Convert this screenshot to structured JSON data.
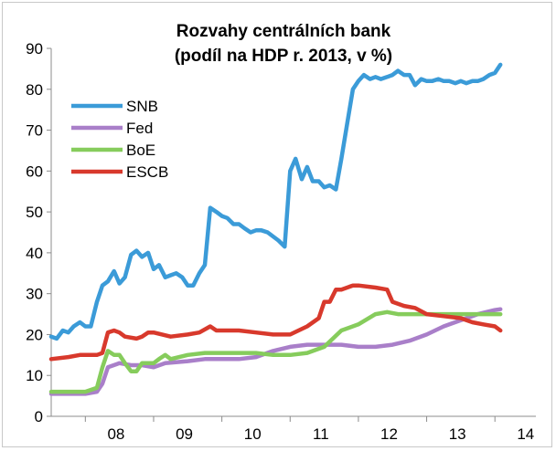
{
  "chart_data": {
    "type": "line",
    "title": "Rozvahy centrálních bank",
    "subtitle": "(podíl na HDP r. 2013, v %)",
    "xlabel": "",
    "ylabel": "",
    "ylim": [
      0,
      90
    ],
    "yticks": [
      0,
      10,
      20,
      30,
      40,
      50,
      60,
      70,
      80,
      90
    ],
    "xlim": [
      2007.5,
      2014.6
    ],
    "xtick_labels": [
      "08",
      "09",
      "10",
      "11",
      "12",
      "13",
      "14"
    ],
    "xtick_positions": [
      2008,
      2009,
      2010,
      2011,
      2012,
      2013,
      2014
    ],
    "grid": false,
    "legend_position": "top-left",
    "series": [
      {
        "name": "SNB",
        "color": "#3b9bd8",
        "points": [
          [
            2007.5,
            19.5
          ],
          [
            2007.58,
            19
          ],
          [
            2007.67,
            21
          ],
          [
            2007.75,
            20.5
          ],
          [
            2007.83,
            22
          ],
          [
            2007.92,
            23
          ],
          [
            2008.0,
            22
          ],
          [
            2008.08,
            22
          ],
          [
            2008.17,
            28
          ],
          [
            2008.25,
            32
          ],
          [
            2008.33,
            33
          ],
          [
            2008.42,
            35.5
          ],
          [
            2008.5,
            32.5
          ],
          [
            2008.58,
            34
          ],
          [
            2008.67,
            39.5
          ],
          [
            2008.75,
            40.5
          ],
          [
            2008.83,
            39
          ],
          [
            2008.92,
            40
          ],
          [
            2009.0,
            36
          ],
          [
            2009.08,
            37
          ],
          [
            2009.17,
            34
          ],
          [
            2009.25,
            34.5
          ],
          [
            2009.33,
            35
          ],
          [
            2009.42,
            34
          ],
          [
            2009.5,
            32
          ],
          [
            2009.58,
            32
          ],
          [
            2009.67,
            35
          ],
          [
            2009.75,
            37
          ],
          [
            2009.83,
            51
          ],
          [
            2009.92,
            50
          ],
          [
            2010.0,
            49
          ],
          [
            2010.08,
            48.5
          ],
          [
            2010.17,
            47
          ],
          [
            2010.25,
            47
          ],
          [
            2010.33,
            46
          ],
          [
            2010.42,
            45
          ],
          [
            2010.5,
            45.5
          ],
          [
            2010.58,
            45.5
          ],
          [
            2010.67,
            45
          ],
          [
            2010.75,
            44
          ],
          [
            2010.83,
            43
          ],
          [
            2010.92,
            41.5
          ],
          [
            2011.0,
            60
          ],
          [
            2011.08,
            63
          ],
          [
            2011.17,
            58
          ],
          [
            2011.25,
            61
          ],
          [
            2011.33,
            57.5
          ],
          [
            2011.42,
            57.5
          ],
          [
            2011.5,
            56
          ],
          [
            2011.58,
            56.5
          ],
          [
            2011.67,
            55.5
          ],
          [
            2011.75,
            63
          ],
          [
            2011.83,
            71
          ],
          [
            2011.92,
            80
          ],
          [
            2012.0,
            82
          ],
          [
            2012.08,
            83.5
          ],
          [
            2012.17,
            82.5
          ],
          [
            2012.25,
            83
          ],
          [
            2012.33,
            82.5
          ],
          [
            2012.42,
            83
          ],
          [
            2012.5,
            83.5
          ],
          [
            2012.58,
            84.5
          ],
          [
            2012.67,
            83.5
          ],
          [
            2012.75,
            83.5
          ],
          [
            2012.83,
            81
          ],
          [
            2012.92,
            82.5
          ],
          [
            2013.0,
            82
          ],
          [
            2013.08,
            82
          ],
          [
            2013.17,
            82.5
          ],
          [
            2013.25,
            82
          ],
          [
            2013.33,
            82
          ],
          [
            2013.42,
            81.5
          ],
          [
            2013.5,
            82
          ],
          [
            2013.58,
            81.5
          ],
          [
            2013.67,
            82
          ],
          [
            2013.75,
            82
          ],
          [
            2013.83,
            82.5
          ],
          [
            2013.92,
            83.5
          ],
          [
            2014.0,
            84
          ],
          [
            2014.08,
            86
          ]
        ]
      },
      {
        "name": "Fed",
        "color": "#a97fc9",
        "points": [
          [
            2007.5,
            5.5
          ],
          [
            2007.75,
            5.5
          ],
          [
            2008.0,
            5.5
          ],
          [
            2008.17,
            6
          ],
          [
            2008.25,
            8
          ],
          [
            2008.33,
            12
          ],
          [
            2008.5,
            13
          ],
          [
            2008.67,
            12.5
          ],
          [
            2008.83,
            12.5
          ],
          [
            2009.0,
            12
          ],
          [
            2009.17,
            13
          ],
          [
            2009.5,
            13.5
          ],
          [
            2009.75,
            14
          ],
          [
            2010.0,
            14
          ],
          [
            2010.25,
            14
          ],
          [
            2010.5,
            14.5
          ],
          [
            2010.75,
            16
          ],
          [
            2011.0,
            17
          ],
          [
            2011.25,
            17.5
          ],
          [
            2011.5,
            17.5
          ],
          [
            2011.75,
            17.5
          ],
          [
            2012.0,
            17
          ],
          [
            2012.25,
            17
          ],
          [
            2012.5,
            17.5
          ],
          [
            2012.75,
            18.5
          ],
          [
            2013.0,
            20
          ],
          [
            2013.25,
            22
          ],
          [
            2013.5,
            23.5
          ],
          [
            2013.75,
            25
          ],
          [
            2014.0,
            26
          ],
          [
            2014.08,
            26.2
          ]
        ]
      },
      {
        "name": "BoE",
        "color": "#86cc5c",
        "points": [
          [
            2007.5,
            6
          ],
          [
            2007.75,
            6
          ],
          [
            2008.0,
            6
          ],
          [
            2008.17,
            7
          ],
          [
            2008.25,
            12
          ],
          [
            2008.33,
            16
          ],
          [
            2008.42,
            15
          ],
          [
            2008.5,
            15
          ],
          [
            2008.58,
            13
          ],
          [
            2008.67,
            11
          ],
          [
            2008.75,
            11
          ],
          [
            2008.83,
            13
          ],
          [
            2009.0,
            13
          ],
          [
            2009.08,
            14
          ],
          [
            2009.17,
            15
          ],
          [
            2009.25,
            14
          ],
          [
            2009.5,
            15
          ],
          [
            2009.75,
            15.5
          ],
          [
            2010.0,
            15.5
          ],
          [
            2010.25,
            15.5
          ],
          [
            2010.5,
            15.5
          ],
          [
            2010.75,
            15
          ],
          [
            2011.0,
            15
          ],
          [
            2011.25,
            15.5
          ],
          [
            2011.5,
            17
          ],
          [
            2011.75,
            21
          ],
          [
            2012.0,
            22.5
          ],
          [
            2012.25,
            25
          ],
          [
            2012.42,
            25.5
          ],
          [
            2012.58,
            25
          ],
          [
            2012.75,
            25
          ],
          [
            2013.0,
            25
          ],
          [
            2013.25,
            25
          ],
          [
            2013.5,
            25
          ],
          [
            2013.75,
            25
          ],
          [
            2014.0,
            25
          ],
          [
            2014.08,
            25
          ]
        ]
      },
      {
        "name": "ESCB",
        "color": "#d8392c",
        "points": [
          [
            2007.5,
            14
          ],
          [
            2007.75,
            14.5
          ],
          [
            2007.92,
            15
          ],
          [
            2008.0,
            15
          ],
          [
            2008.17,
            15
          ],
          [
            2008.25,
            15.5
          ],
          [
            2008.33,
            20.5
          ],
          [
            2008.42,
            21
          ],
          [
            2008.5,
            20.5
          ],
          [
            2008.58,
            19.5
          ],
          [
            2008.75,
            19
          ],
          [
            2008.83,
            19.5
          ],
          [
            2008.92,
            20.5
          ],
          [
            2009.0,
            20.5
          ],
          [
            2009.25,
            19.5
          ],
          [
            2009.5,
            20
          ],
          [
            2009.67,
            20.5
          ],
          [
            2009.83,
            22
          ],
          [
            2009.92,
            21
          ],
          [
            2010.0,
            21
          ],
          [
            2010.25,
            21
          ],
          [
            2010.5,
            20.5
          ],
          [
            2010.75,
            20
          ],
          [
            2011.0,
            20
          ],
          [
            2011.25,
            22
          ],
          [
            2011.42,
            24
          ],
          [
            2011.5,
            28
          ],
          [
            2011.58,
            28
          ],
          [
            2011.67,
            31
          ],
          [
            2011.75,
            31
          ],
          [
            2011.92,
            32
          ],
          [
            2012.0,
            32
          ],
          [
            2012.25,
            31.5
          ],
          [
            2012.42,
            31
          ],
          [
            2012.5,
            28
          ],
          [
            2012.67,
            27
          ],
          [
            2012.83,
            26.5
          ],
          [
            2013.0,
            25
          ],
          [
            2013.25,
            24.5
          ],
          [
            2013.5,
            24
          ],
          [
            2013.67,
            23
          ],
          [
            2013.83,
            22.5
          ],
          [
            2014.0,
            22
          ],
          [
            2014.08,
            21
          ]
        ]
      }
    ]
  }
}
